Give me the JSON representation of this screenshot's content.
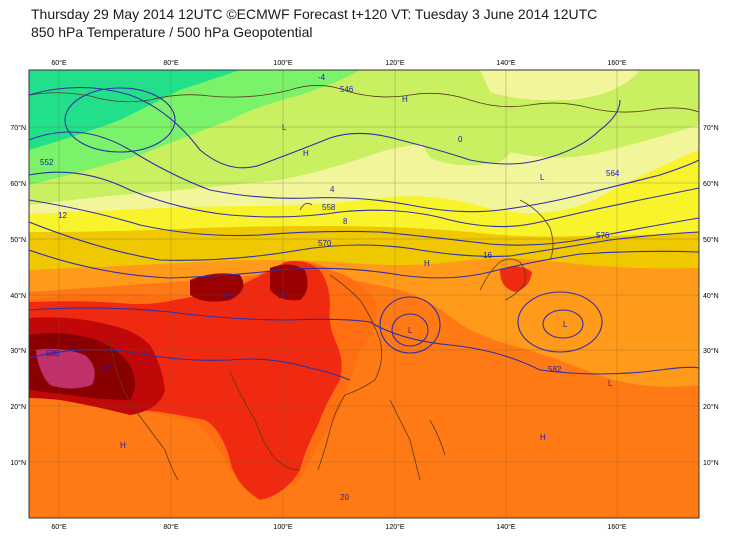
{
  "header": {
    "line1": "Thursday 29 May 2014 12UTC ©ECMWF Forecast t+120 VT: Tuesday 3 June 2014 12UTC",
    "line2": "850 hPa Temperature / 500 hPa Geopotential"
  },
  "axes": {
    "lon_labels": [
      "60°E",
      "80°E",
      "100°E",
      "120°E",
      "140°E",
      "160°E"
    ],
    "lat_labels": [
      "70°N",
      "60°N",
      "50°N",
      "40°N",
      "30°N",
      "20°N",
      "10°N"
    ]
  },
  "temperature_bands": {
    "colors": [
      "#22e08a",
      "#7af26a",
      "#c8f060",
      "#f2f59a",
      "#f8f32a",
      "#f0c800",
      "#ff9a1a",
      "#ff6f12",
      "#f01818",
      "#9a0000",
      "#d0307a"
    ],
    "band_labels": [
      "-4",
      "0",
      "4",
      "8",
      "12",
      "16",
      "20",
      "24",
      "28",
      "32"
    ]
  },
  "geopotential": {
    "isolines": [
      "546",
      "552",
      "558",
      "564",
      "570",
      "576",
      "582",
      "588"
    ],
    "line_color": "#3030a8"
  },
  "contour_labels": [
    "546",
    "552",
    "558",
    "564",
    "570",
    "576",
    "582",
    "588",
    "-4",
    "0",
    "4",
    "8",
    "12",
    "16",
    "20",
    "24",
    "28",
    "32"
  ],
  "pressure_centers": [
    "H",
    "L"
  ]
}
